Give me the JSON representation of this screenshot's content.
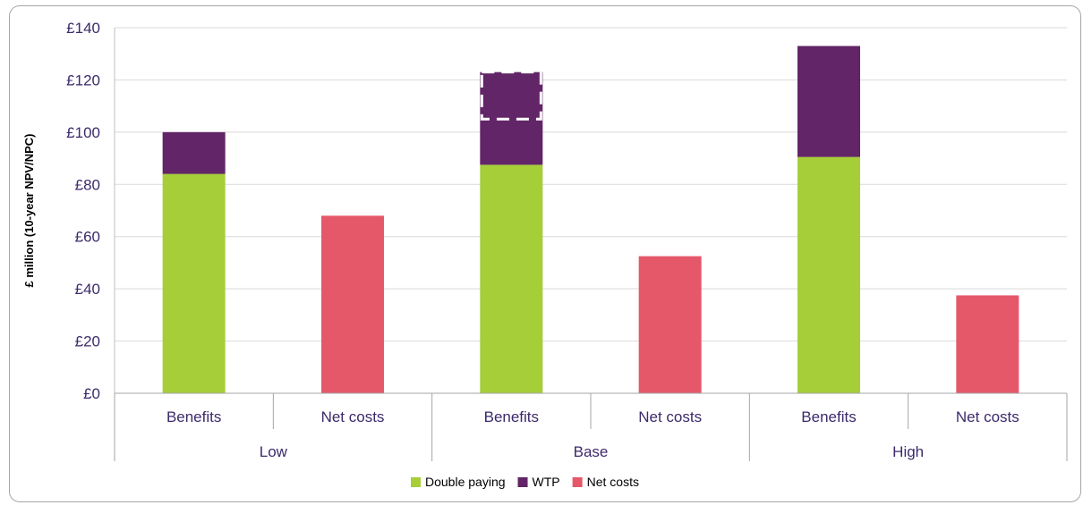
{
  "chart_data": {
    "type": "bar",
    "stacked": true,
    "ylabel": "£ million (10-year NPV/NPC)",
    "ylim": [
      0,
      140
    ],
    "yticks": [
      0,
      20,
      40,
      60,
      80,
      100,
      120,
      140
    ],
    "ytick_labels": [
      "£0",
      "£20",
      "£40",
      "£60",
      "£80",
      "£100",
      "£120",
      "£140"
    ],
    "grid": true,
    "legend_position": "bottom",
    "groups": [
      "Low",
      "Base",
      "High"
    ],
    "categories": [
      "Benefits",
      "Net costs",
      "Benefits",
      "Net costs",
      "Benefits",
      "Net costs"
    ],
    "category_group": [
      "Low",
      "Low",
      "Base",
      "Base",
      "High",
      "High"
    ],
    "series": [
      {
        "name": "Double paying",
        "color": "#a6ce39",
        "values": [
          84,
          0,
          87.5,
          0,
          90.5,
          0
        ]
      },
      {
        "name": "WTP",
        "color": "#622567",
        "values": [
          16,
          0,
          35.5,
          0,
          42.5,
          0
        ]
      },
      {
        "name": "Net costs",
        "color": "#e5586a",
        "values": [
          0,
          68,
          0,
          52.5,
          0,
          37.5
        ]
      }
    ],
    "annotations": [
      {
        "category_index": 2,
        "type": "dashed-box",
        "y_range": [
          105,
          123
        ]
      }
    ]
  }
}
